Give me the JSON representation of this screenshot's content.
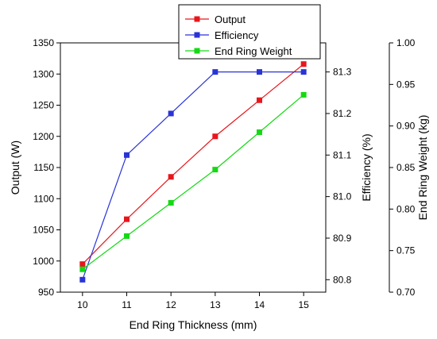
{
  "chart_data": {
    "type": "line",
    "title": "",
    "xlabel": "End Ring Thickness (mm)",
    "x": [
      10,
      11,
      12,
      13,
      14,
      15
    ],
    "xlim": [
      9.5,
      15.5
    ],
    "x_ticks": [
      "10",
      "11",
      "12",
      "13",
      "14",
      "15"
    ],
    "axes": [
      {
        "id": "output",
        "label": "Output (W)",
        "position": "left",
        "lim": [
          950,
          1350
        ],
        "ticks": [
          "950",
          "1000",
          "1050",
          "1100",
          "1150",
          "1200",
          "1250",
          "1300",
          "1350"
        ]
      },
      {
        "id": "efficiency",
        "label": "Efficiency (%)",
        "position": "right",
        "lim": [
          80.77,
          81.37
        ],
        "ticks": [
          "80.8",
          "80.9",
          "81.0",
          "81.1",
          "81.2",
          "81.3"
        ]
      },
      {
        "id": "weight",
        "label": "End Ring Weight (kg)",
        "position": "right-outer",
        "lim": [
          0.7,
          1.0
        ],
        "ticks": [
          "0.70",
          "0.75",
          "0.80",
          "0.85",
          "0.90",
          "0.95",
          "1.00"
        ]
      }
    ],
    "series": [
      {
        "name": "Output",
        "axis": "output",
        "color": "#e8161c",
        "marker": "square",
        "values": [
          995,
          1067,
          1135,
          1200,
          1258,
          1316
        ]
      },
      {
        "name": "Efficiency",
        "axis": "efficiency",
        "color": "#2a33d6",
        "marker": "square",
        "values": [
          80.8,
          81.1,
          81.2,
          81.3,
          81.3,
          81.3
        ]
      },
      {
        "name": "End Ring Weight",
        "axis": "weight",
        "color": "#14d914",
        "marker": "square",
        "values": [
          0.7275,
          0.7675,
          0.8075,
          0.8475,
          0.8925,
          0.9375
        ]
      }
    ],
    "legend": {
      "placement": "top-center"
    },
    "grid": false
  }
}
